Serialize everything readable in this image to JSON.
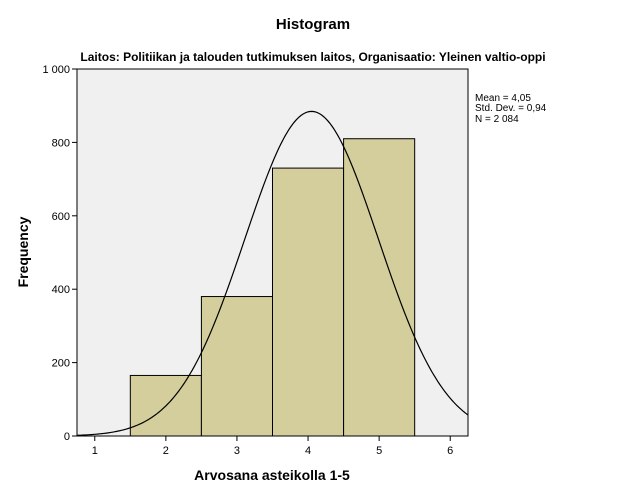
{
  "chart_data": {
    "type": "bar",
    "title": "Histogram",
    "subtitle": "Laitos: Politiikan ja talouden tutkimuksen laitos, Organisaatio: Yleinen valtio-oppi",
    "xlabel": "Arvosana asteikolla 1-5",
    "ylabel": "Frequency",
    "xlim": [
      0.75,
      6.25
    ],
    "ylim": [
      0,
      1000
    ],
    "x_ticks": [
      1,
      2,
      3,
      4,
      5,
      6
    ],
    "x_tick_labels": [
      "1",
      "2",
      "3",
      "4",
      "5",
      "6"
    ],
    "y_ticks": [
      0,
      200,
      400,
      600,
      800,
      1000
    ],
    "y_tick_labels": [
      "0",
      "200",
      "400",
      "600",
      "800",
      "1 000"
    ],
    "bin_width": 1,
    "categories": [
      2,
      3,
      4,
      5
    ],
    "values": [
      165,
      380,
      730,
      810
    ],
    "normal_curve": {
      "mean": 4.05,
      "sd": 0.94,
      "n": 2084
    },
    "stats": {
      "mean": "Mean = 4,05",
      "std_dev": "Std. Dev. = 0,94",
      "n": "N = 2 084"
    },
    "colors": {
      "plot_background": "#f0f0f0",
      "bar_fill": "#d3ce9b",
      "bar_stroke": "#000000",
      "curve": "#000000"
    }
  }
}
